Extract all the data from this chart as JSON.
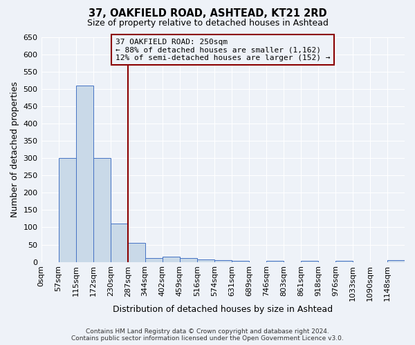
{
  "title1": "37, OAKFIELD ROAD, ASHTEAD, KT21 2RD",
  "title2": "Size of property relative to detached houses in Ashtead",
  "xlabel": "Distribution of detached houses by size in Ashtead",
  "ylabel": "Number of detached properties",
  "bin_labels": [
    "0sqm",
    "57sqm",
    "115sqm",
    "172sqm",
    "230sqm",
    "287sqm",
    "344sqm",
    "402sqm",
    "459sqm",
    "516sqm",
    "574sqm",
    "631sqm",
    "689sqm",
    "746sqm",
    "803sqm",
    "861sqm",
    "918sqm",
    "976sqm",
    "1033sqm",
    "1090sqm",
    "1148sqm"
  ],
  "bar_heights": [
    0,
    300,
    510,
    300,
    110,
    55,
    12,
    15,
    12,
    8,
    5,
    4,
    0,
    4,
    0,
    4,
    0,
    3,
    0,
    0,
    5
  ],
  "bar_color": "#c9d9e8",
  "bar_edge_color": "#4472c4",
  "property_line_x": 5,
  "property_line_color": "#8b0000",
  "annotation_line1": "37 OAKFIELD ROAD: 250sqm",
  "annotation_line2": "← 88% of detached houses are smaller (1,162)",
  "annotation_line3": "12% of semi-detached houses are larger (152) →",
  "annotation_box_color": "#8b0000",
  "ylim": [
    0,
    650
  ],
  "yticks": [
    0,
    50,
    100,
    150,
    200,
    250,
    300,
    350,
    400,
    450,
    500,
    550,
    600,
    650
  ],
  "footer1": "Contains HM Land Registry data © Crown copyright and database right 2024.",
  "footer2": "Contains public sector information licensed under the Open Government Licence v3.0.",
  "bg_color": "#eef2f8",
  "grid_color": "#ffffff"
}
